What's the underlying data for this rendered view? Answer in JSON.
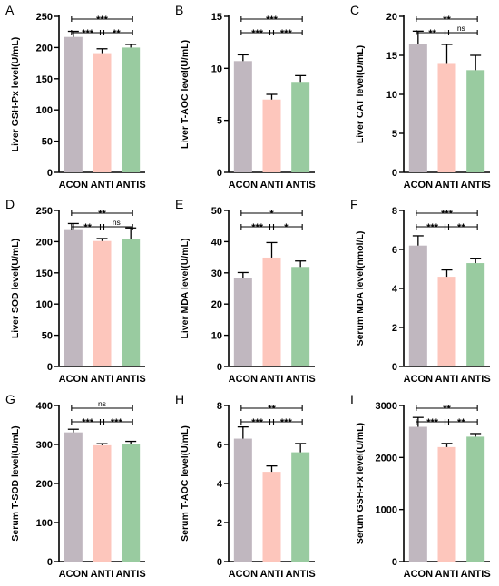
{
  "colors": {
    "ACON": "#c0b7bf",
    "ANTI": "#fdc6bc",
    "ANTIS": "#99cba0",
    "axis": "#000000"
  },
  "chart_data": [
    {
      "type": "bar",
      "panel_label": "A",
      "ylabel": "Liver GSH-Px level(U/mL)",
      "categories": [
        "ACON",
        "ANTI",
        "ANTIS"
      ],
      "values": [
        217,
        191,
        200
      ],
      "errors": [
        9,
        7,
        5
      ],
      "ylim": [
        0,
        250
      ],
      "yticks": [
        0,
        50,
        100,
        150,
        200,
        250
      ],
      "significance": [
        {
          "from": 0,
          "to": 2,
          "label": "***"
        },
        {
          "from": 0,
          "to": 1,
          "label": "***"
        },
        {
          "from": 1,
          "to": 2,
          "label": "**"
        }
      ]
    },
    {
      "type": "bar",
      "panel_label": "B",
      "ylabel": "Liver T-AOC level(U/mL)",
      "categories": [
        "ACON",
        "ANTI",
        "ANTIS"
      ],
      "values": [
        10.7,
        7.0,
        8.7
      ],
      "errors": [
        0.6,
        0.5,
        0.6
      ],
      "ylim": [
        0,
        15
      ],
      "yticks": [
        0,
        5,
        10,
        15
      ],
      "significance": [
        {
          "from": 0,
          "to": 2,
          "label": "***"
        },
        {
          "from": 0,
          "to": 1,
          "label": "***"
        },
        {
          "from": 1,
          "to": 2,
          "label": "***"
        }
      ]
    },
    {
      "type": "bar",
      "panel_label": "C",
      "ylabel": "Liver CAT level(U/mL)",
      "categories": [
        "ACON",
        "ANTI",
        "ANTIS"
      ],
      "values": [
        16.5,
        13.9,
        13.1
      ],
      "errors": [
        1.6,
        2.5,
        1.9
      ],
      "ylim": [
        0,
        20
      ],
      "yticks": [
        0,
        5,
        10,
        15,
        20
      ],
      "significance": [
        {
          "from": 0,
          "to": 2,
          "label": "**"
        },
        {
          "from": 0,
          "to": 1,
          "label": "**"
        },
        {
          "from": 1,
          "to": 2,
          "label": "ns"
        }
      ]
    },
    {
      "type": "bar",
      "panel_label": "D",
      "ylabel": "Liver SOD level(U/mL)",
      "categories": [
        "ACON",
        "ANTI",
        "ANTIS"
      ],
      "values": [
        220,
        201,
        204
      ],
      "errors": [
        9,
        4,
        18
      ],
      "ylim": [
        0,
        250
      ],
      "yticks": [
        0,
        50,
        100,
        150,
        200,
        250
      ],
      "significance": [
        {
          "from": 0,
          "to": 2,
          "label": "**"
        },
        {
          "from": 0,
          "to": 1,
          "label": "**"
        },
        {
          "from": 1,
          "to": 2,
          "label": "ns"
        }
      ]
    },
    {
      "type": "bar",
      "panel_label": "E",
      "ylabel": "Liver MDA level(U/mL)",
      "categories": [
        "ACON",
        "ANTI",
        "ANTIS"
      ],
      "values": [
        28.3,
        34.9,
        31.9
      ],
      "errors": [
        1.8,
        4.8,
        1.9
      ],
      "ylim": [
        0,
        50
      ],
      "yticks": [
        0,
        10,
        20,
        30,
        40,
        50
      ],
      "significance": [
        {
          "from": 0,
          "to": 2,
          "label": "*"
        },
        {
          "from": 0,
          "to": 1,
          "label": "***"
        },
        {
          "from": 1,
          "to": 2,
          "label": "*"
        }
      ]
    },
    {
      "type": "bar",
      "panel_label": "F",
      "ylabel": "Serum MDA level(nmol/L)",
      "categories": [
        "ACON",
        "ANTI",
        "ANTIS"
      ],
      "values": [
        6.2,
        4.6,
        5.3
      ],
      "errors": [
        0.5,
        0.35,
        0.25
      ],
      "ylim": [
        0,
        8
      ],
      "yticks": [
        0,
        2,
        4,
        6,
        8
      ],
      "significance": [
        {
          "from": 0,
          "to": 2,
          "label": "***"
        },
        {
          "from": 0,
          "to": 1,
          "label": "***"
        },
        {
          "from": 1,
          "to": 2,
          "label": "**"
        }
      ]
    },
    {
      "type": "bar",
      "panel_label": "G",
      "ylabel": "Serum T-SOD level(U/mL)",
      "categories": [
        "ACON",
        "ANTI",
        "ANTIS"
      ],
      "values": [
        331,
        298,
        301
      ],
      "errors": [
        8,
        4,
        7
      ],
      "ylim": [
        0,
        400
      ],
      "yticks": [
        0,
        100,
        200,
        300,
        400
      ],
      "significance": [
        {
          "from": 0,
          "to": 2,
          "label": "ns"
        },
        {
          "from": 0,
          "to": 1,
          "label": "***"
        },
        {
          "from": 1,
          "to": 2,
          "label": "***"
        }
      ]
    },
    {
      "type": "bar",
      "panel_label": "H",
      "ylabel": "Serum T-AOC level(U/mL)",
      "categories": [
        "ACON",
        "ANTI",
        "ANTIS"
      ],
      "values": [
        6.3,
        4.6,
        5.6
      ],
      "errors": [
        0.6,
        0.3,
        0.45
      ],
      "ylim": [
        0,
        8
      ],
      "yticks": [
        0,
        2,
        4,
        6,
        8
      ],
      "significance": [
        {
          "from": 0,
          "to": 2,
          "label": "**"
        },
        {
          "from": 0,
          "to": 1,
          "label": "***"
        },
        {
          "from": 1,
          "to": 2,
          "label": "***"
        }
      ]
    },
    {
      "type": "bar",
      "panel_label": "I",
      "ylabel": "Serum GSH-Px level(U/mL)",
      "categories": [
        "ACON",
        "ANTI",
        "ANTIS"
      ],
      "values": [
        2590,
        2200,
        2400
      ],
      "errors": [
        180,
        70,
        60
      ],
      "ylim": [
        0,
        3000
      ],
      "yticks": [
        0,
        1000,
        2000,
        3000
      ],
      "significance": [
        {
          "from": 0,
          "to": 2,
          "label": "**"
        },
        {
          "from": 0,
          "to": 1,
          "label": "***"
        },
        {
          "from": 1,
          "to": 2,
          "label": "**"
        }
      ]
    }
  ]
}
